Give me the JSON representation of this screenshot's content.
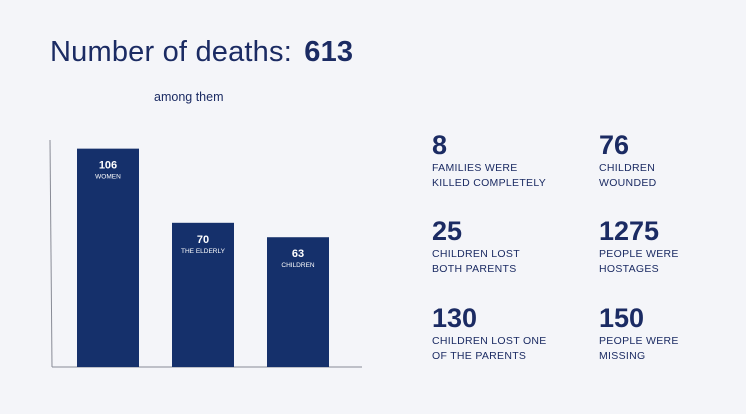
{
  "title": {
    "label": "Number of deaths:",
    "value": "613"
  },
  "subtitle": "among them",
  "chart_data": {
    "type": "bar",
    "categories": [
      "WOMEN",
      "THE ELDERLY",
      "CHILDREN"
    ],
    "values": [
      106,
      70,
      63
    ],
    "ylim": [
      0,
      150
    ],
    "grid": false
  },
  "stats": [
    {
      "value": "8",
      "line1": "FAMILIES WERE",
      "line2": "KILLED COMPLETELY"
    },
    {
      "value": "76",
      "line1": "CHILDREN",
      "line2": "WOUNDED"
    },
    {
      "value": "25",
      "line1": "CHILDREN LOST",
      "line2": "BOTH PARENTS"
    },
    {
      "value": "1275",
      "line1": "PEOPLE WERE",
      "line2": "HOSTAGES"
    },
    {
      "value": "130",
      "line1": "CHILDREN LOST ONE",
      "line2": "OF THE PARENTS"
    },
    {
      "value": "150",
      "line1": "PEOPLE WERE",
      "line2": "MISSING"
    }
  ],
  "colors": {
    "bar": "#15306b",
    "text": "#1b2b63",
    "background": "#f4f5f9"
  }
}
